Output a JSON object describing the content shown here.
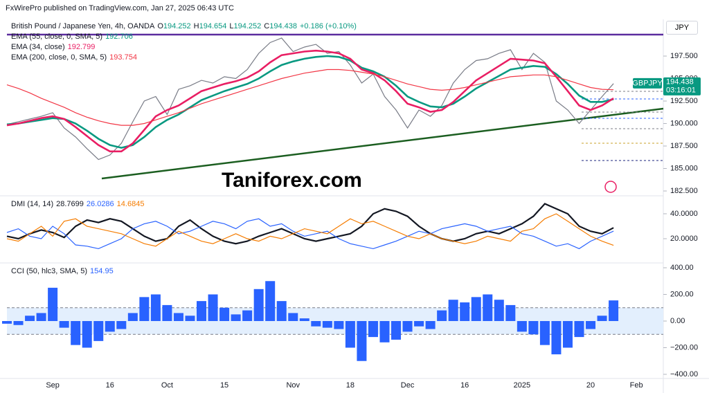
{
  "header": "FxWirePro published on TradingView.com, Jan 27, 2025 06:43 UTC",
  "watermark": "Taniforex.com",
  "currency_button": "JPY",
  "chart_data": [
    {
      "type": "line",
      "title": "British Pound / Japanese Yen, 4h, OANDA",
      "ohlc": [
        {
          "label": "O",
          "value": 194.252
        },
        {
          "label": "H",
          "value": 194.654
        },
        {
          "label": "L",
          "value": 194.252
        },
        {
          "label": "C",
          "value": 194.438
        }
      ],
      "change": "+0.186 (+0.10%)",
      "symbol_label": "GBPJPY",
      "countdown": "03:16:01",
      "ylim": [
        182.04,
        201.58
      ],
      "yticks": [
        {
          "value": 182.5,
          "label": "182.500"
        },
        {
          "value": 185,
          "label": "185.000"
        },
        {
          "value": 187.5,
          "label": "187.500"
        },
        {
          "value": 190,
          "label": "190.000"
        },
        {
          "value": 192.5,
          "label": "192.500"
        },
        {
          "value": 195,
          "label": "195.000"
        },
        {
          "value": 197.5,
          "label": "197.500"
        }
      ],
      "grid": false,
      "series": [
        {
          "color": "#787b86",
          "values": [
            189.9,
            190.2,
            190.5,
            190.8,
            191.2,
            189.5,
            188.5,
            187.2,
            186.0,
            186.5,
            187.8,
            190.2,
            192.5,
            193.0,
            191.0,
            193.8,
            194.2,
            194.8,
            194.5,
            195.2,
            195.0,
            196.0,
            197.8,
            199.0,
            199.5,
            198.0,
            198.5,
            198.8,
            197.8,
            198.0,
            196.5,
            194.5,
            195.5,
            193.0,
            191.5,
            189.5,
            191.5,
            190.8,
            192.0,
            194.5,
            196.0,
            197.0,
            197.2,
            197.8,
            198.2,
            196.0,
            197.8,
            196.8,
            192.5,
            191.5,
            190.0,
            191.5,
            193.0,
            194.438,
            null,
            null,
            null,
            null
          ]
        },
        {
          "name": "EMA (55, close, 0, SMA, 5)",
          "color": "#089981",
          "values": [
            189.9,
            190.0,
            190.2,
            190.4,
            190.6,
            190.5,
            190.0,
            189.2,
            188.3,
            187.6,
            187.3,
            187.6,
            188.5,
            189.6,
            190.4,
            191.0,
            191.8,
            192.6,
            193.1,
            193.6,
            194.0,
            194.4,
            195.0,
            195.8,
            196.5,
            196.9,
            197.2,
            197.4,
            197.5,
            197.4,
            197.0,
            196.2,
            195.8,
            195.2,
            194.2,
            193.0,
            192.4,
            191.9,
            191.8,
            192.2,
            193.0,
            193.9,
            194.6,
            195.3,
            196.0,
            196.2,
            196.4,
            196.3,
            195.5,
            194.4,
            193.1,
            192.4,
            192.4,
            192.706,
            null,
            null,
            null,
            null
          ]
        },
        {
          "name": "EMA (34, close)",
          "color": "#e91e63",
          "values": [
            189.8,
            190.0,
            190.3,
            190.6,
            190.8,
            190.5,
            189.6,
            188.6,
            187.6,
            186.9,
            186.9,
            187.8,
            189.3,
            190.8,
            191.5,
            192.0,
            192.8,
            193.6,
            194.0,
            194.4,
            194.7,
            195.1,
            195.8,
            196.8,
            197.6,
            197.8,
            198.0,
            198.1,
            198.0,
            197.8,
            197.2,
            196.0,
            195.6,
            194.8,
            193.6,
            192.2,
            191.8,
            191.3,
            191.5,
            192.4,
            193.6,
            194.8,
            195.6,
            196.4,
            197.2,
            197.1,
            197.0,
            196.7,
            195.2,
            193.6,
            192.0,
            191.5,
            192.0,
            192.799,
            null,
            null,
            null,
            null
          ]
        },
        {
          "name": "EMA (200, close, 0, SMA, 5)",
          "color": "#f23645",
          "values": [
            194.3,
            193.9,
            193.4,
            192.8,
            192.3,
            191.8,
            191.2,
            190.7,
            190.3,
            190.0,
            189.8,
            189.8,
            190.0,
            190.4,
            190.8,
            191.2,
            191.7,
            192.2,
            192.6,
            193.0,
            193.4,
            193.8,
            194.2,
            194.6,
            195.0,
            195.3,
            195.6,
            195.8,
            196.0,
            196.0,
            195.9,
            195.7,
            195.5,
            195.2,
            194.8,
            194.4,
            194.1,
            193.8,
            193.7,
            193.8,
            194.0,
            194.3,
            194.6,
            194.9,
            195.2,
            195.3,
            195.4,
            195.4,
            195.2,
            194.8,
            194.4,
            194.0,
            193.8,
            193.754,
            null,
            null,
            null,
            null
          ]
        }
      ]
    },
    {
      "type": "line",
      "title": "DMI (14, 14)",
      "ylim": [
        1.67,
        53.3
      ],
      "yticks": [
        {
          "value": 20,
          "label": "20.0000"
        },
        {
          "value": 40,
          "label": "40.0000"
        }
      ],
      "series": [
        {
          "color": "#131722",
          "values": [
            22,
            20,
            24,
            27,
            25,
            21,
            30,
            35,
            33,
            36,
            34,
            28,
            22,
            18,
            20,
            30,
            35,
            28,
            22,
            18,
            16,
            18,
            22,
            25,
            28,
            24,
            20,
            18,
            20,
            22,
            24,
            30,
            40,
            44,
            42,
            38,
            30,
            24,
            20,
            18,
            20,
            24,
            26,
            24,
            28,
            32,
            38,
            48,
            44,
            40,
            30,
            26,
            24,
            28.7699,
            null,
            null,
            null,
            null
          ]
        },
        {
          "color": "#2962ff",
          "values": [
            25,
            28,
            22,
            20,
            30,
            24,
            15,
            14,
            12,
            16,
            20,
            28,
            32,
            34,
            30,
            24,
            26,
            30,
            34,
            32,
            28,
            34,
            36,
            30,
            32,
            26,
            22,
            24,
            26,
            20,
            16,
            14,
            12,
            15,
            18,
            22,
            26,
            24,
            28,
            30,
            32,
            30,
            26,
            28,
            30,
            24,
            22,
            18,
            14,
            16,
            12,
            18,
            22,
            26.0286,
            null,
            null,
            null,
            null
          ]
        },
        {
          "color": "#f57c00",
          "values": [
            20,
            18,
            24,
            30,
            22,
            34,
            36,
            30,
            28,
            26,
            24,
            20,
            16,
            14,
            20,
            26,
            22,
            18,
            16,
            20,
            24,
            20,
            18,
            22,
            20,
            24,
            28,
            26,
            24,
            30,
            36,
            32,
            34,
            30,
            26,
            22,
            20,
            24,
            20,
            18,
            16,
            18,
            22,
            20,
            18,
            26,
            28,
            36,
            40,
            34,
            28,
            22,
            18,
            14.6845,
            null,
            null,
            null,
            null
          ]
        }
      ]
    },
    {
      "type": "bar",
      "title": "CCI (50, hlc3, SMA, 5)",
      "ylim": [
        -420.8,
        426
      ],
      "yticks": [
        {
          "value": -400,
          "label": "−400.00"
        },
        {
          "value": -200,
          "label": "−200.00"
        },
        {
          "value": 0,
          "label": "0.00"
        },
        {
          "value": 200,
          "label": "200.00"
        },
        {
          "value": 400,
          "label": "400.00"
        }
      ],
      "bands": [
        -100,
        100
      ],
      "categories": [
        null,
        null,
        null,
        null,
        "Sep",
        null,
        null,
        null,
        null,
        "16",
        null,
        null,
        null,
        null,
        "Oct",
        null,
        null,
        null,
        null,
        "15",
        null,
        null,
        null,
        null,
        null,
        "Nov",
        null,
        null,
        null,
        null,
        "18",
        null,
        null,
        null,
        null,
        "Dec",
        null,
        null,
        null,
        null,
        "16",
        null,
        null,
        null,
        null,
        "2025",
        null,
        null,
        null,
        null,
        null,
        "20",
        null,
        null,
        null,
        "Feb",
        null,
        null
      ],
      "series": [
        {
          "color": "#2962ff",
          "values": [
            -20,
            -30,
            40,
            60,
            250,
            -50,
            -180,
            -200,
            -150,
            -80,
            -60,
            60,
            180,
            200,
            120,
            60,
            40,
            150,
            200,
            100,
            50,
            80,
            240,
            300,
            150,
            60,
            20,
            -40,
            -50,
            -60,
            -200,
            -300,
            -120,
            -160,
            -140,
            -80,
            -40,
            -60,
            80,
            160,
            140,
            180,
            200,
            160,
            120,
            -80,
            -100,
            -180,
            -250,
            -200,
            -120,
            -60,
            40,
            154.95,
            null,
            null,
            null,
            null
          ]
        }
      ]
    }
  ]
}
